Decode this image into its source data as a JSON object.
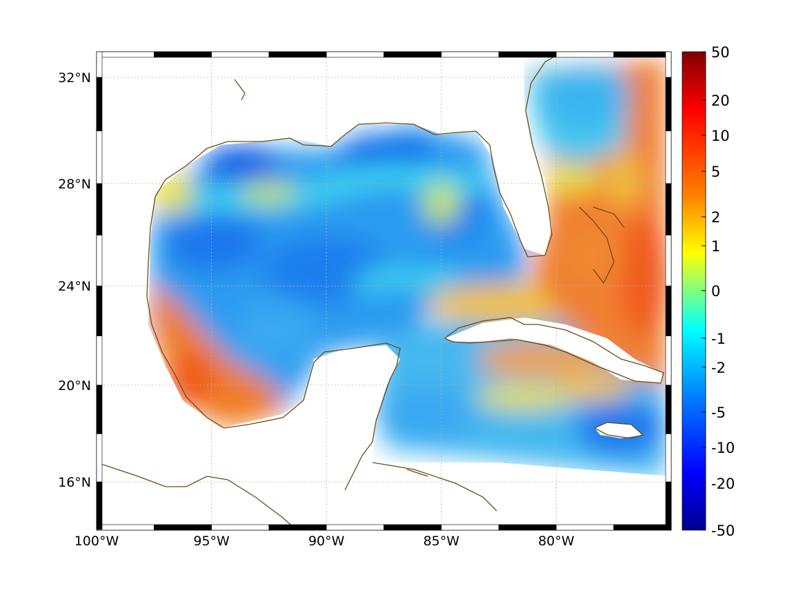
{
  "map": {
    "lon_range": [
      -100,
      -75
    ],
    "lat_range": [
      14,
      33
    ],
    "lon_ticks": [
      {
        "value": -100,
        "label": "100°W"
      },
      {
        "value": -95,
        "label": "95°W"
      },
      {
        "value": -90,
        "label": "90°W"
      },
      {
        "value": -85,
        "label": "85°W"
      },
      {
        "value": -80,
        "label": "80°W"
      }
    ],
    "lat_ticks": [
      {
        "value": 32,
        "label": "32°N"
      },
      {
        "value": 28,
        "label": "28°N"
      },
      {
        "value": 24,
        "label": "24°N"
      },
      {
        "value": 20,
        "label": "20°N"
      },
      {
        "value": 16,
        "label": "16°N"
      }
    ],
    "grid": true,
    "coastline_color": "#6b4a12",
    "frame_style": "alternating black-white border"
  },
  "colorbar": {
    "position": "right",
    "tick_labels": [
      "50",
      "20",
      "10",
      "5",
      "2",
      "1",
      "0",
      "-1",
      "-2",
      "-5",
      "-10",
      "-20",
      "-50"
    ],
    "colors": [
      "#7f0000",
      "#ff0000",
      "#ff8000",
      "#ffff00",
      "#80ff80",
      "#00ffff",
      "#0080ff",
      "#0000ff",
      "#00008f"
    ]
  },
  "field": {
    "description_values": [
      {
        "region": "western Gulf shelf",
        "approx_value": 5
      },
      {
        "region": "central Gulf",
        "approx_value": -5
      },
      {
        "region": "Bahamas / Atlantic",
        "approx_value": 10
      },
      {
        "region": "Caribbean",
        "approx_value": -2
      }
    ]
  }
}
